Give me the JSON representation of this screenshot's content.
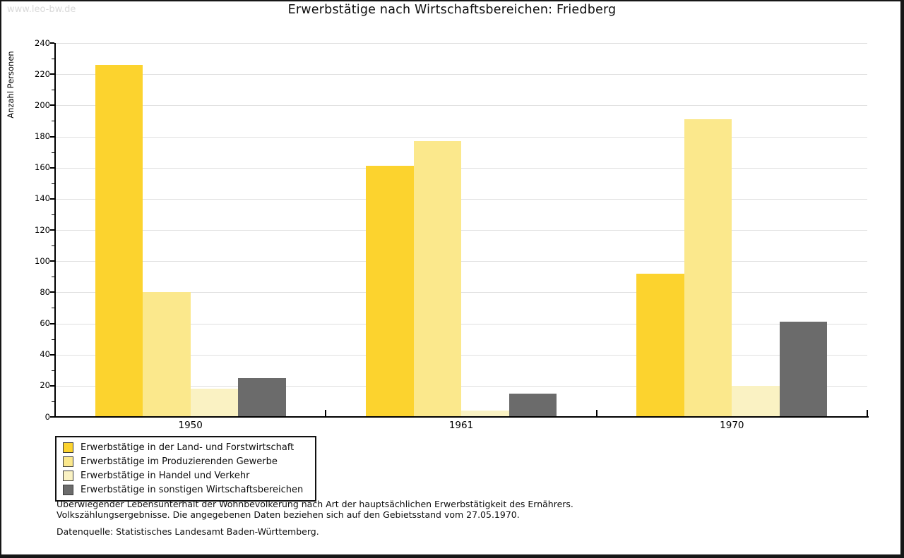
{
  "watermark": "www.leo-bw.de",
  "title": "Erwerbstätige nach Wirtschaftsbereichen: Friedberg",
  "chart_data": {
    "type": "bar",
    "title": "Erwerbstätige nach Wirtschaftsbereichen: Friedberg",
    "xlabel": "",
    "ylabel": "Anzahl Personen",
    "ylim": [
      0,
      240
    ],
    "ytick_step": 20,
    "yminor_step": 10,
    "grid": true,
    "legend_position": "bottom-left",
    "categories": [
      "1950",
      "1961",
      "1970"
    ],
    "series": [
      {
        "name": "Erwerbstätige in der Land- und Forstwirtschaft",
        "color": "#FCD32E",
        "values": [
          226,
          161,
          92
        ]
      },
      {
        "name": "Erwerbstätige im Produzierenden Gewerbe",
        "color": "#FBE88C",
        "values": [
          80,
          177,
          191
        ]
      },
      {
        "name": "Erwerbstätige in Handel und Verkehr",
        "color": "#FAF2C3",
        "values": [
          18,
          4,
          20
        ]
      },
      {
        "name": "Erwerbstätige in sonstigen Wirtschaftsbereichen",
        "color": "#6B6B6B",
        "values": [
          25,
          15,
          61
        ]
      }
    ]
  },
  "footnotes": {
    "line1": "Überwiegender Lebensunterhalt der Wohnbevölkerung nach Art der hauptsächlichen Erwerbstätigkeit des Ernährers.",
    "line2": "Volkszählungsergebnisse. Die angegebenen Daten beziehen sich auf den Gebietsstand vom 27.05.1970.",
    "source": "Datenquelle: Statistisches Landesamt Baden-Württemberg."
  },
  "colors": {
    "grid": "#E0E0E0",
    "axis": "#000000",
    "watermark": "#D9D9D9",
    "frame": "#161616"
  }
}
